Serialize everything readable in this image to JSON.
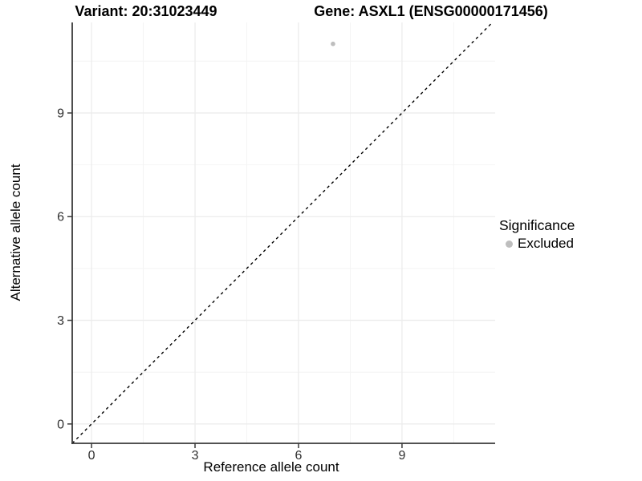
{
  "titles": {
    "variant": "Variant: 20:31023449",
    "gene": "Gene: ASXL1 (ENSG00000171456)"
  },
  "chart_data": {
    "type": "scatter",
    "title": "Variant: 20:31023449 | Gene: ASXL1 (ENSG00000171456)",
    "xlabel": "Reference allele count",
    "ylabel": "Alternative allele count",
    "xlim": [
      -0.56,
      11.7
    ],
    "ylim": [
      -0.56,
      11.62
    ],
    "xticks": [
      0,
      3,
      6,
      9
    ],
    "yticks": [
      0,
      3,
      6,
      9
    ],
    "minor_tick_step": 1.5,
    "grid": true,
    "points": [
      {
        "x": 7,
        "y": 11,
        "significance": "Excluded"
      }
    ],
    "reference_line": {
      "type": "identity",
      "slope": 1,
      "intercept": 0,
      "style": "dashed"
    },
    "legend": {
      "title": "Significance",
      "position": "right",
      "entries": [
        {
          "label": "Excluded",
          "color": "#bebebe"
        }
      ]
    }
  },
  "colors": {
    "point": "#bebebe",
    "legend_key": "#bebebe",
    "axis_line": "#3a3a3a",
    "tick_text": "#303030",
    "grid_major": "#ececec",
    "grid_minor": "#f4f4f4",
    "reference_line": "#000000",
    "background": "#ffffff",
    "title_text": "#000000"
  }
}
